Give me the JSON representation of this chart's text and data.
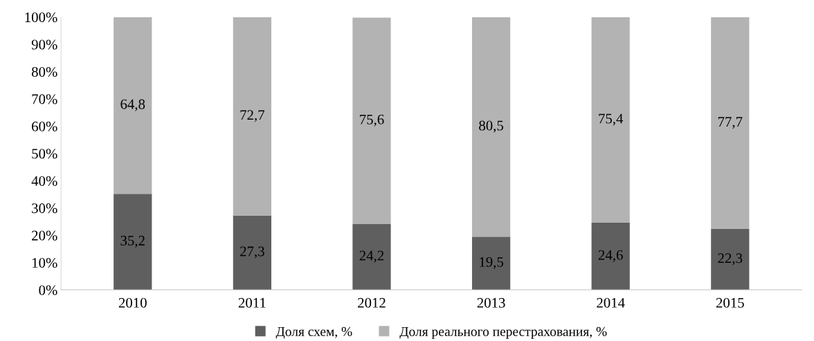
{
  "chart_data": {
    "type": "bar",
    "stacked": true,
    "categories": [
      "2010",
      "2011",
      "2012",
      "2013",
      "2014",
      "2015"
    ],
    "series": [
      {
        "name": "Доля схем, %",
        "color": "#5f5f5f",
        "values": [
          35.2,
          27.3,
          24.2,
          19.5,
          24.6,
          22.3
        ],
        "value_labels": [
          "35,2",
          "27,3",
          "24,2",
          "19,5",
          "24,6",
          "22,3"
        ]
      },
      {
        "name": "Доля реального перестрахования, %",
        "color": "#b3b3b3",
        "values": [
          64.8,
          72.7,
          75.6,
          80.5,
          75.4,
          77.7
        ],
        "value_labels": [
          "64,8",
          "72,7",
          "75,6",
          "80,5",
          "75,4",
          "77,7"
        ]
      }
    ],
    "ylim": [
      0,
      100
    ],
    "yticks": [
      {
        "value": 0,
        "label": "0%"
      },
      {
        "value": 10,
        "label": "10%"
      },
      {
        "value": 20,
        "label": "20%"
      },
      {
        "value": 30,
        "label": "30%"
      },
      {
        "value": 40,
        "label": "40%"
      },
      {
        "value": 50,
        "label": "50%"
      },
      {
        "value": 60,
        "label": "60%"
      },
      {
        "value": 70,
        "label": "70%"
      },
      {
        "value": 80,
        "label": "80%"
      },
      {
        "value": 90,
        "label": "90%"
      },
      {
        "value": 100,
        "label": "100%"
      }
    ],
    "grid": false,
    "legend": "bottom"
  }
}
